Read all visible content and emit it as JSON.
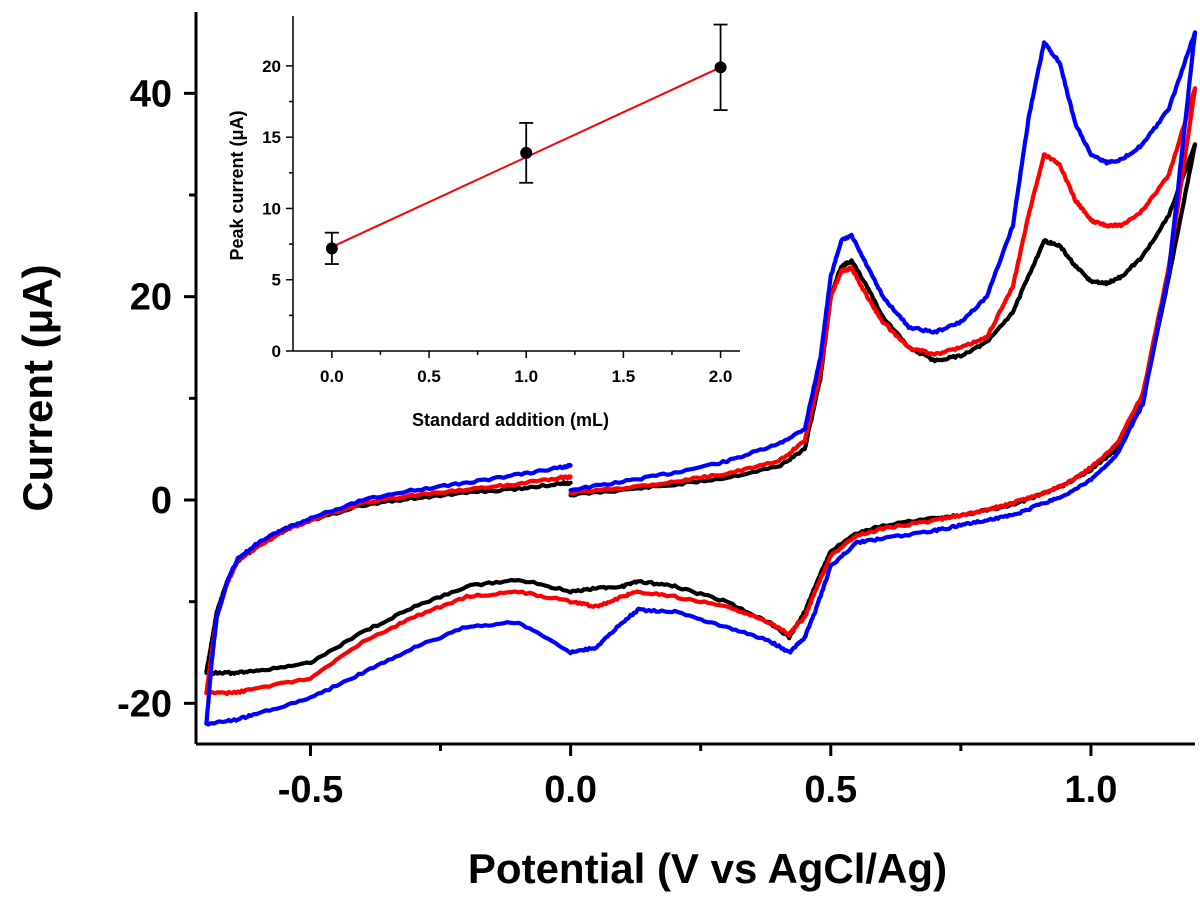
{
  "chart_data": [
    {
      "type": "line",
      "xlabel": "Potential (V vs AgCl/Ag)",
      "ylabel": "Current (μA)",
      "xlim": [
        -0.72,
        1.2
      ],
      "ylim": [
        -24,
        48
      ],
      "xticks": [
        "-0.5",
        "0.0",
        "0.5",
        "1.0"
      ],
      "xtick_values": [
        -0.5,
        0.0,
        0.5,
        1.0
      ],
      "yticks": [
        "-20",
        "0",
        "20",
        "40"
      ],
      "ytick_values": [
        -20,
        0,
        20,
        40
      ],
      "grid": false,
      "series": [
        {
          "color": "#000000",
          "forward_x": [
            0.0,
            0.1,
            0.2,
            0.3,
            0.4,
            0.45,
            0.48,
            0.5,
            0.52,
            0.54,
            0.57,
            0.6,
            0.65,
            0.7,
            0.75,
            0.8,
            0.85,
            0.88,
            0.91,
            0.94,
            0.97,
            1.0,
            1.03,
            1.06,
            1.1,
            1.15,
            1.2
          ],
          "forward_y": [
            0.5,
            1.0,
            1.5,
            2.2,
            3.3,
            5.0,
            12.0,
            20.0,
            23.0,
            23.5,
            21.0,
            18.0,
            15.0,
            13.7,
            14.2,
            15.5,
            18.5,
            22.0,
            25.5,
            25.0,
            23.0,
            21.5,
            21.3,
            22.0,
            24.0,
            28.0,
            35.0
          ],
          "return_x": [
            1.2,
            1.15,
            1.1,
            1.05,
            1.0,
            0.95,
            0.9,
            0.85,
            0.8,
            0.75,
            0.7,
            0.6,
            0.55,
            0.5,
            0.47,
            0.45,
            0.42,
            0.38,
            0.3,
            0.2,
            0.13,
            0.1,
            0.05,
            0.0,
            -0.1,
            -0.2,
            -0.3,
            -0.4,
            -0.5,
            -0.6,
            -0.65,
            -0.7
          ],
          "return_y": [
            35.0,
            22.0,
            10.0,
            5.0,
            3.0,
            1.5,
            0.5,
            -0.5,
            -1.0,
            -1.5,
            -1.8,
            -2.5,
            -3.3,
            -5.0,
            -8.5,
            -11.0,
            -13.5,
            -12.0,
            -10.0,
            -8.5,
            -8.0,
            -8.5,
            -8.7,
            -9.0,
            -7.8,
            -8.5,
            -10.5,
            -13.0,
            -16.0,
            -16.8,
            -17.0,
            -17.0
          ],
          "closing_x": [
            -0.7,
            -0.69,
            -0.68,
            -0.66,
            -0.64,
            -0.6,
            -0.55,
            -0.5,
            -0.4,
            -0.3,
            -0.2,
            -0.1,
            -0.02,
            0.0
          ],
          "closing_y": [
            -17.0,
            -14.0,
            -11.0,
            -8.0,
            -6.0,
            -4.5,
            -3.0,
            -2.0,
            -0.5,
            0.2,
            0.7,
            1.1,
            1.6,
            1.7
          ]
        },
        {
          "color": "#ff0000",
          "forward_x": [
            0.0,
            0.1,
            0.2,
            0.3,
            0.4,
            0.45,
            0.48,
            0.5,
            0.52,
            0.54,
            0.57,
            0.6,
            0.65,
            0.7,
            0.75,
            0.8,
            0.85,
            0.88,
            0.91,
            0.94,
            0.97,
            1.0,
            1.03,
            1.06,
            1.1,
            1.15,
            1.2
          ],
          "forward_y": [
            0.7,
            1.2,
            1.8,
            2.6,
            3.8,
            5.8,
            12.5,
            20.0,
            22.5,
            22.8,
            20.0,
            17.5,
            15.0,
            14.3,
            15.0,
            16.0,
            21.0,
            28.0,
            34.0,
            33.0,
            29.5,
            27.5,
            27.0,
            27.0,
            28.5,
            32.0,
            40.5
          ],
          "return_x": [
            1.2,
            1.15,
            1.1,
            1.05,
            1.0,
            0.95,
            0.9,
            0.85,
            0.8,
            0.75,
            0.7,
            0.6,
            0.55,
            0.5,
            0.47,
            0.45,
            0.42,
            0.38,
            0.3,
            0.2,
            0.13,
            0.1,
            0.05,
            0.0,
            -0.1,
            -0.2,
            -0.3,
            -0.4,
            -0.5,
            -0.6,
            -0.65,
            -0.7
          ],
          "return_y": [
            40.5,
            23.0,
            10.5,
            5.5,
            3.2,
            1.5,
            0.5,
            -0.3,
            -1.0,
            -1.5,
            -2.0,
            -2.8,
            -3.5,
            -5.5,
            -9.0,
            -11.5,
            -13.2,
            -12.0,
            -10.5,
            -9.5,
            -9.0,
            -9.5,
            -10.5,
            -10.0,
            -9.0,
            -9.5,
            -11.5,
            -14.0,
            -17.5,
            -18.5,
            -19.0,
            -19.0
          ],
          "closing_x": [
            -0.7,
            -0.69,
            -0.68,
            -0.66,
            -0.64,
            -0.6,
            -0.55,
            -0.5,
            -0.4,
            -0.3,
            -0.2,
            -0.1,
            -0.02,
            0.0
          ],
          "closing_y": [
            -19.0,
            -15.0,
            -11.5,
            -8.2,
            -6.0,
            -4.5,
            -3.0,
            -2.0,
            -0.3,
            0.5,
            1.0,
            1.6,
            2.2,
            2.3
          ]
        },
        {
          "color": "#0000ff",
          "forward_x": [
            0.0,
            0.1,
            0.2,
            0.3,
            0.4,
            0.45,
            0.48,
            0.5,
            0.52,
            0.54,
            0.57,
            0.6,
            0.65,
            0.7,
            0.75,
            0.8,
            0.85,
            0.88,
            0.91,
            0.94,
            0.97,
            1.0,
            1.03,
            1.06,
            1.1,
            1.15,
            1.2
          ],
          "forward_y": [
            1.0,
            1.8,
            2.7,
            3.8,
            5.5,
            7.0,
            14.0,
            22.0,
            25.5,
            26.0,
            23.0,
            20.0,
            17.0,
            16.5,
            17.5,
            20.0,
            27.0,
            37.5,
            45.0,
            43.0,
            37.0,
            34.0,
            33.2,
            33.5,
            35.0,
            38.5,
            46.0
          ],
          "return_x": [
            1.2,
            1.15,
            1.1,
            1.05,
            1.0,
            0.95,
            0.9,
            0.85,
            0.8,
            0.75,
            0.7,
            0.6,
            0.55,
            0.5,
            0.47,
            0.45,
            0.42,
            0.38,
            0.3,
            0.2,
            0.13,
            0.1,
            0.05,
            0.0,
            -0.1,
            -0.2,
            -0.3,
            -0.4,
            -0.5,
            -0.6,
            -0.65,
            -0.7
          ],
          "return_y": [
            46.0,
            22.5,
            9.5,
            4.5,
            2.0,
            0.5,
            -0.5,
            -1.5,
            -2.0,
            -2.5,
            -3.0,
            -3.8,
            -4.2,
            -6.5,
            -11.0,
            -13.5,
            -15.0,
            -13.8,
            -12.5,
            -11.0,
            -10.8,
            -12.0,
            -14.5,
            -15.0,
            -12.0,
            -12.5,
            -14.5,
            -17.0,
            -19.5,
            -21.0,
            -21.7,
            -22.0
          ],
          "closing_x": [
            -0.7,
            -0.69,
            -0.68,
            -0.66,
            -0.64,
            -0.6,
            -0.55,
            -0.5,
            -0.4,
            -0.3,
            -0.2,
            -0.1,
            -0.02,
            0.0
          ],
          "closing_y": [
            -22.0,
            -16.0,
            -11.5,
            -8.0,
            -5.8,
            -4.2,
            -2.8,
            -1.8,
            0.0,
            1.0,
            1.7,
            2.5,
            3.2,
            3.4
          ]
        }
      ]
    },
    {
      "type": "scatter",
      "xlabel": "Standard addition (mL)",
      "ylabel": "Peak current (μA)",
      "xlim": [
        -0.2,
        2.1
      ],
      "ylim": [
        0,
        23.5
      ],
      "xticks": [
        "0.0",
        "0.5",
        "1.0",
        "1.5",
        "2.0"
      ],
      "xtick_values": [
        0.0,
        0.5,
        1.0,
        1.5,
        2.0
      ],
      "yticks": [
        "0",
        "5",
        "10",
        "15",
        "20"
      ],
      "ytick_values": [
        0,
        5,
        10,
        15,
        20
      ],
      "grid": false,
      "points": {
        "x": [
          0.0,
          1.0,
          2.0
        ],
        "y": [
          7.2,
          13.9,
          19.9
        ],
        "error": [
          1.1,
          2.1,
          3.0
        ],
        "color": "#000000"
      },
      "fit_line": {
        "x": [
          0.0,
          2.0
        ],
        "y": [
          7.3,
          19.9
        ],
        "color": "#ff0000"
      }
    }
  ]
}
